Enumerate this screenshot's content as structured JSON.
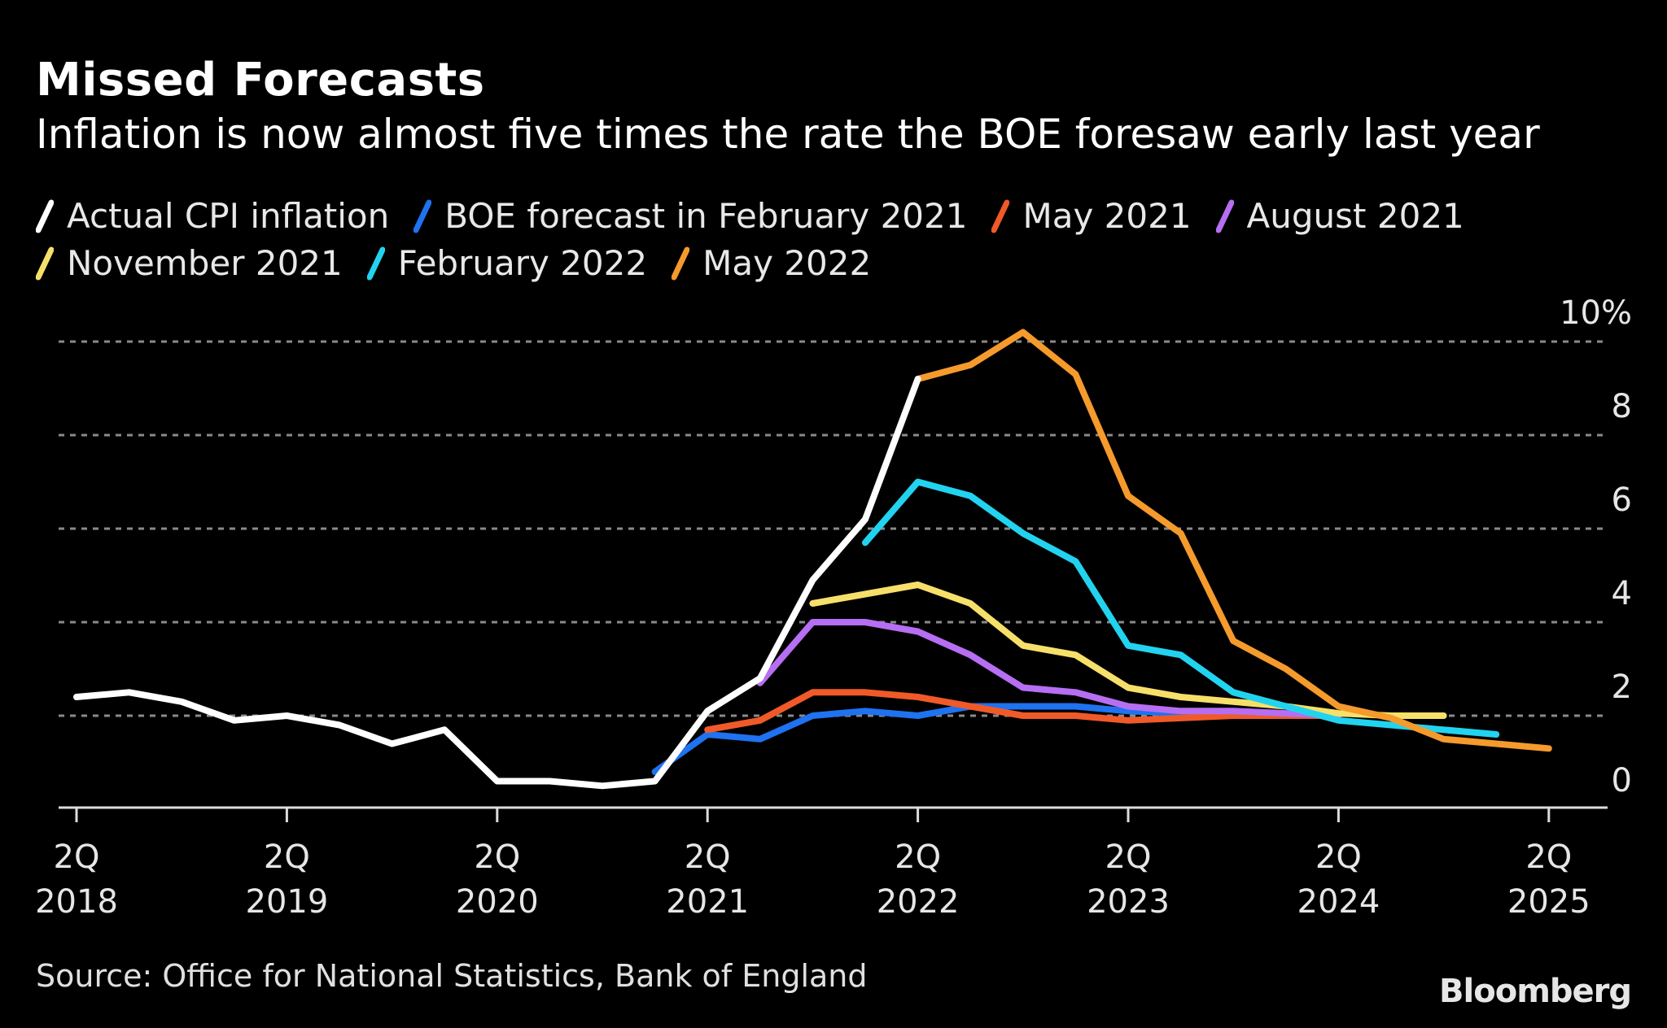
{
  "chart_data": {
    "type": "line",
    "title": "Missed Forecasts",
    "subtitle": "Inflation is now almost five times the rate the BOE foresaw early last year",
    "xlabel": "",
    "ylabel": "",
    "y_unit_suffix": "%",
    "ylim": [
      0,
      10
    ],
    "yticks": [
      0,
      2,
      4,
      6,
      8,
      10
    ],
    "ytick_labels": [
      "0",
      "2",
      "4",
      "6",
      "8",
      "10%"
    ],
    "y_axis_position": "right",
    "grid": "horizontal dotted",
    "legend_position": "top-left",
    "x_quarters": [
      "2Q2018",
      "3Q2018",
      "4Q2018",
      "1Q2019",
      "2Q2019",
      "3Q2019",
      "4Q2019",
      "1Q2020",
      "2Q2020",
      "3Q2020",
      "4Q2020",
      "1Q2021",
      "2Q2021",
      "3Q2021",
      "4Q2021",
      "1Q2022",
      "2Q2022",
      "3Q2022",
      "4Q2022",
      "1Q2023",
      "2Q2023",
      "3Q2023",
      "4Q2023",
      "1Q2024",
      "2Q2024",
      "3Q2024",
      "4Q2024",
      "1Q2025",
      "2Q2025"
    ],
    "xticks": [
      {
        "quarter": "2Q2018",
        "line1": "2Q",
        "line2": "2018"
      },
      {
        "quarter": "2Q2019",
        "line1": "2Q",
        "line2": "2019"
      },
      {
        "quarter": "2Q2020",
        "line1": "2Q",
        "line2": "2020"
      },
      {
        "quarter": "2Q2021",
        "line1": "2Q",
        "line2": "2021"
      },
      {
        "quarter": "2Q2022",
        "line1": "2Q",
        "line2": "2022"
      },
      {
        "quarter": "2Q2023",
        "line1": "2Q",
        "line2": "2023"
      },
      {
        "quarter": "2Q2024",
        "line1": "2Q",
        "line2": "2024"
      },
      {
        "quarter": "2Q2025",
        "line1": "2Q",
        "line2": "2025"
      }
    ],
    "series": [
      {
        "name": "Actual CPI inflation",
        "color": "#ffffff",
        "start": "2Q2018",
        "values": [
          2.4,
          2.5,
          2.3,
          1.9,
          2.0,
          1.8,
          1.4,
          1.7,
          0.6,
          0.6,
          0.5,
          0.6,
          2.1,
          2.8,
          4.9,
          6.2,
          9.2
        ]
      },
      {
        "name": "BOE forecast in February 2021",
        "color": "#1f72f0",
        "start": "1Q2021",
        "values": [
          0.8,
          1.6,
          1.5,
          2.0,
          2.1,
          2.0,
          2.2,
          2.2,
          2.2,
          2.1,
          2.05,
          2.0,
          2.0,
          2.0
        ]
      },
      {
        "name": "May 2021",
        "color": "#f05a28",
        "start": "2Q2021",
        "values": [
          1.7,
          1.9,
          2.5,
          2.5,
          2.4,
          2.2,
          2.0,
          2.0,
          1.9,
          1.95,
          2.0,
          2.0,
          2.0
        ]
      },
      {
        "name": "August 2021",
        "color": "#b66ef2",
        "start": "3Q2021",
        "values": [
          2.7,
          4.0,
          4.0,
          3.8,
          3.3,
          2.6,
          2.5,
          2.2,
          2.1,
          2.1,
          2.05,
          2.0
        ]
      },
      {
        "name": "November 2021",
        "color": "#f6e06a",
        "start": "4Q2021",
        "values": [
          4.4,
          4.6,
          4.8,
          4.4,
          3.5,
          3.3,
          2.6,
          2.4,
          2.3,
          2.2,
          2.05,
          2.0,
          2.0
        ]
      },
      {
        "name": "February 2022",
        "color": "#22d3f0",
        "start": "1Q2022",
        "values": [
          5.7,
          7.0,
          6.7,
          5.9,
          5.3,
          3.5,
          3.3,
          2.5,
          2.2,
          1.9,
          1.8,
          1.7,
          1.6
        ]
      },
      {
        "name": "May 2022",
        "color": "#f59a2c",
        "start": "2Q2022",
        "values": [
          9.2,
          9.5,
          10.2,
          9.3,
          6.7,
          5.9,
          3.6,
          3.0,
          2.2,
          1.95,
          1.5,
          1.4,
          1.3
        ]
      }
    ]
  },
  "legend": {
    "rows": [
      [
        0,
        1,
        2,
        3
      ],
      [
        4,
        5,
        6
      ]
    ]
  },
  "footer": {
    "source": "Source: Office for National Statistics, Bank of England",
    "brand": "Bloomberg"
  }
}
